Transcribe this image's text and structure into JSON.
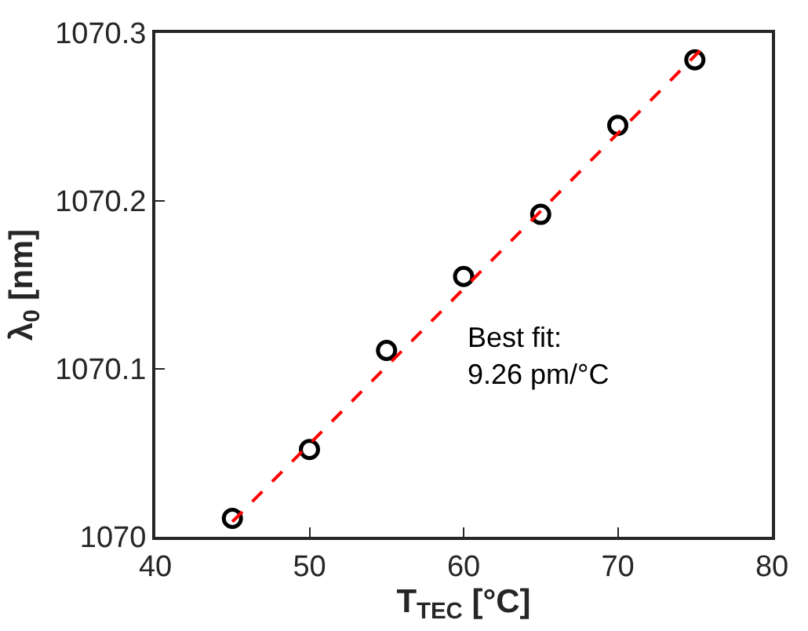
{
  "chart_data": {
    "type": "scatter",
    "xlabel": "T$_{TEC}$ [°C]",
    "ylabel": "λ$_{0}$ [nm]",
    "x": [
      45,
      50,
      55,
      60,
      65,
      70,
      75
    ],
    "series": [
      {
        "color": "#000000",
        "marker": "circle",
        "values": [
          1070.011,
          1070.052,
          1070.111,
          1070.155,
          1070.192,
          1070.245,
          1070.284
        ]
      },
      {
        "type": "line",
        "color": "#ff0000",
        "line_style": "dashed",
        "marker": "none",
        "x": [
          45,
          75.5
        ],
        "values": [
          1070.009,
          1070.291
        ]
      }
    ],
    "annotations": [
      "Best fit:\n9.26 pm/°C"
    ],
    "xlim": [
      40,
      80
    ],
    "ylim": [
      1070,
      1070.3
    ],
    "xticks": [
      40,
      50,
      60,
      70,
      80
    ],
    "yticks": [
      1070,
      1070.1,
      1070.2,
      1070.3
    ],
    "grid": false,
    "legend": false
  }
}
